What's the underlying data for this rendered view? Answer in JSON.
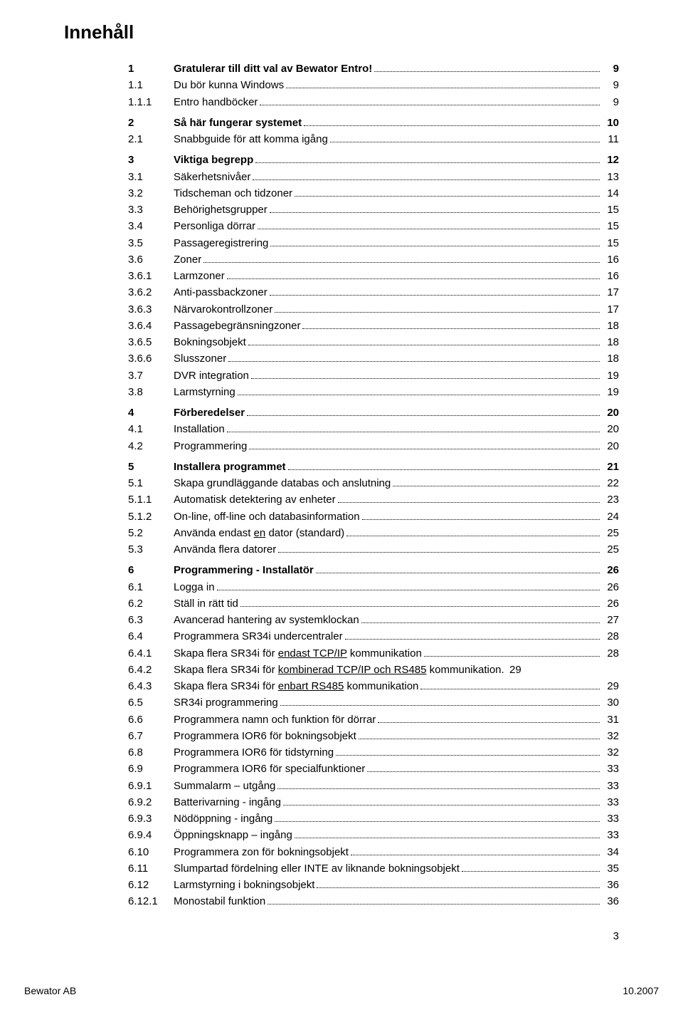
{
  "title": "Innehåll",
  "page_number_footer": "3",
  "bottom_left": "Bewator AB",
  "bottom_right": "10.2007",
  "font": {
    "title_size_pt": 20,
    "row_size_pt": 11,
    "family": "Arial"
  },
  "colors": {
    "text": "#000000",
    "background": "#ffffff",
    "leader": "#000000"
  },
  "groups": [
    {
      "rows": [
        {
          "num": "1",
          "title": "Gratulerar till ditt val av Bewator Entro!",
          "page": "9",
          "bold": true
        },
        {
          "num": "1.1",
          "title": "Du bör kunna Windows",
          "page": "9"
        },
        {
          "num": "1.1.1",
          "title": "Entro handböcker",
          "page": "9"
        }
      ]
    },
    {
      "rows": [
        {
          "num": "2",
          "title": "Så här fungerar systemet",
          "page": "10",
          "bold": true
        },
        {
          "num": "2.1",
          "title": "Snabbguide för att komma igång",
          "page": "11"
        }
      ]
    },
    {
      "rows": [
        {
          "num": "3",
          "title": "Viktiga begrepp",
          "page": "12",
          "bold": true
        },
        {
          "num": "3.1",
          "title": "Säkerhetsnivåer",
          "page": "13"
        },
        {
          "num": "3.2",
          "title": "Tidscheman och tidzoner",
          "page": "14"
        },
        {
          "num": "3.3",
          "title": "Behörighetsgrupper",
          "page": "15"
        },
        {
          "num": "3.4",
          "title": "Personliga dörrar",
          "page": "15"
        },
        {
          "num": "3.5",
          "title": "Passageregistrering",
          "page": "15"
        },
        {
          "num": "3.6",
          "title": "Zoner",
          "page": "16"
        },
        {
          "num": "3.6.1",
          "title": "Larmzoner",
          "page": "16"
        },
        {
          "num": "3.6.2",
          "title": "Anti-passbackzoner",
          "page": "17"
        },
        {
          "num": "3.6.3",
          "title": "Närvarokontrollzoner",
          "page": "17"
        },
        {
          "num": "3.6.4",
          "title": "Passagebegränsningzoner",
          "page": "18"
        },
        {
          "num": "3.6.5",
          "title": "Bokningsobjekt",
          "page": "18"
        },
        {
          "num": "3.6.6",
          "title": "Slusszoner",
          "page": "18"
        },
        {
          "num": "3.7",
          "title": "DVR integration",
          "page": "19"
        },
        {
          "num": "3.8",
          "title": "Larmstyrning",
          "page": "19"
        }
      ]
    },
    {
      "rows": [
        {
          "num": "4",
          "title": "Förberedelser",
          "page": "20",
          "bold": true
        },
        {
          "num": "4.1",
          "title": "Installation",
          "page": "20"
        },
        {
          "num": "4.2",
          "title": "Programmering",
          "page": "20"
        }
      ]
    },
    {
      "rows": [
        {
          "num": "5",
          "title": "Installera programmet",
          "page": "21",
          "bold": true
        },
        {
          "num": "5.1",
          "title": "Skapa grundläggande databas och anslutning",
          "page": "22"
        },
        {
          "num": "5.1.1",
          "title": "Automatisk detektering av enheter",
          "page": "23"
        },
        {
          "num": "5.1.2",
          "title": "On-line, off-line och databasinformation",
          "page": "24"
        },
        {
          "num": "5.2",
          "title_pre": "Använda endast ",
          "title_underline": "en",
          "title_post": " dator (standard)",
          "page": "25"
        },
        {
          "num": "5.3",
          "title": "Använda flera datorer",
          "page": "25"
        }
      ]
    },
    {
      "rows": [
        {
          "num": "6",
          "title": "Programmering - Installatör",
          "page": "26",
          "bold": true
        },
        {
          "num": "6.1",
          "title": "Logga in",
          "page": "26"
        },
        {
          "num": "6.2",
          "title": "Ställ in rätt tid",
          "page": "26"
        },
        {
          "num": "6.3",
          "title": "Avancerad hantering av systemklockan",
          "page": "27"
        },
        {
          "num": "6.4",
          "title": "Programmera SR34i undercentraler",
          "page": "28"
        },
        {
          "num": "6.4.1",
          "title_pre": "Skapa flera SR34i för ",
          "title_underline": "endast TCP/IP",
          "title_post": " kommunikation",
          "page": "28"
        },
        {
          "num": "6.4.2",
          "title_pre": "Skapa flera SR34i för ",
          "title_underline": "kombinerad TCP/IP och RS485",
          "title_post": " kommunikation",
          "page": "29",
          "no_leader": true
        },
        {
          "num": "6.4.3",
          "title_pre": "Skapa flera SR34i för ",
          "title_underline": "enbart RS485",
          "title_post": " kommunikation",
          "page": "29"
        },
        {
          "num": "6.5",
          "title": "SR34i programmering",
          "page": "30"
        },
        {
          "num": "6.6",
          "title": "Programmera namn och funktion för dörrar",
          "page": "31"
        },
        {
          "num": "6.7",
          "title": "Programmera IOR6 för bokningsobjekt",
          "page": "32"
        },
        {
          "num": "6.8",
          "title": "Programmera IOR6 för tidstyrning",
          "page": "32"
        },
        {
          "num": "6.9",
          "title": "Programmera IOR6 för specialfunktioner",
          "page": "33"
        },
        {
          "num": "6.9.1",
          "title": "Summalarm – utgång",
          "page": "33"
        },
        {
          "num": "6.9.2",
          "title": "Batterivarning - ingång",
          "page": "33"
        },
        {
          "num": "6.9.3",
          "title": "Nödöppning - ingång",
          "page": "33"
        },
        {
          "num": "6.9.4",
          "title": "Öppningsknapp – ingång",
          "page": "33"
        },
        {
          "num": "6.10",
          "title": "Programmera zon för bokningsobjekt",
          "page": "34"
        },
        {
          "num": "6.11",
          "title": "Slumpartad fördelning eller INTE av liknande bokningsobjekt",
          "page": "35"
        },
        {
          "num": "6.12",
          "title": "Larmstyrning i bokningsobjekt",
          "page": "36"
        },
        {
          "num": "6.12.1",
          "title": "Monostabil funktion",
          "page": "36"
        }
      ]
    }
  ]
}
